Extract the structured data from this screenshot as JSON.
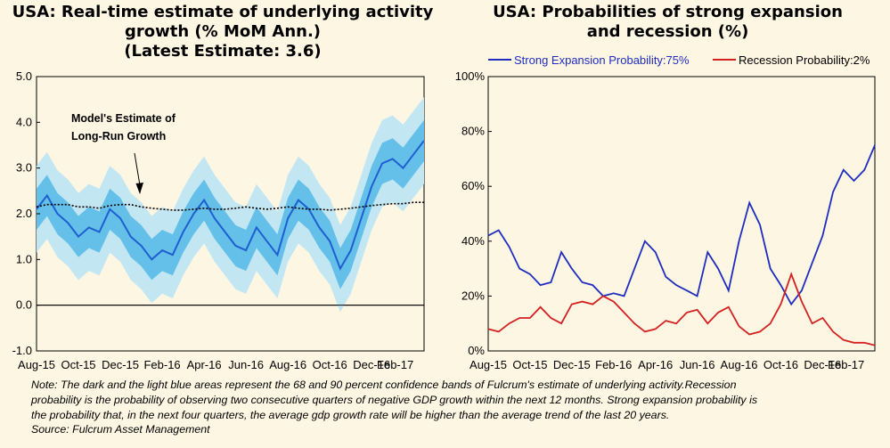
{
  "left_title_lines": [
    "USA: Real-time estimate of underlying activity",
    "growth (% MoM Ann.)",
    "(Latest Estimate: 3.6)"
  ],
  "right_title_lines": [
    "USA: Probabilities of strong expansion",
    "and recession (%)"
  ],
  "note_lines": [
    "Note: The dark and the light blue areas represent the 68 and 90 percent confidence bands of Fulcrum's estimate of underlying activity.Recession",
    "probability is the probability of observing two consecutive quarters of negative GDP growth within the next 12 months. Strong expansion probability is",
    "the probability that, in the next four quarters, the average gdp growth rate will be higher than the average trend of the last 20 years."
  ],
  "source": "Source: Fulcrum Asset Management",
  "colors": {
    "background": "#fdf6e3",
    "dark_band": "#64c0e8",
    "light_band": "#c3e6f3",
    "estimate_line": "#1d5fd0",
    "expansion": "#1f2dbf",
    "recession": "#d42020",
    "trend": "#000000"
  },
  "chart_data": [
    {
      "type": "line",
      "title": "USA: Real-time estimate of underlying activity growth (% MoM Ann.)",
      "subtitle": "(Latest Estimate: 3.6)",
      "x_tick_labels": [
        "Aug-15",
        "Oct-15",
        "Dec-15",
        "Feb-16",
        "Apr-16",
        "Jun-16",
        "Aug-16",
        "Oct-16",
        "Dec-16",
        "Feb-17"
      ],
      "y_tick_labels": [
        "-1.0",
        "0.0",
        "1.0",
        "2.0",
        "3.0",
        "4.0",
        "5.0"
      ],
      "ylim": [
        -1,
        5
      ],
      "annotation_lines": [
        "Model's Estimate of",
        "Long-Run Growth"
      ],
      "x_months_since_aug15": [
        0,
        0.5,
        1,
        1.5,
        2,
        2.5,
        3,
        3.5,
        4,
        4.5,
        5,
        5.5,
        6,
        6.5,
        7,
        7.5,
        8,
        8.5,
        9,
        9.5,
        10,
        10.5,
        11,
        11.5,
        12,
        12.5,
        13,
        13.5,
        14,
        14.5,
        15,
        15.5,
        16,
        16.5,
        17,
        17.5,
        18,
        18.5
      ],
      "series": [
        {
          "name": "Underlying activity growth estimate",
          "values": [
            2.1,
            2.4,
            2.0,
            1.8,
            1.5,
            1.7,
            1.6,
            2.1,
            1.9,
            1.5,
            1.3,
            1.0,
            1.2,
            1.1,
            1.6,
            2.0,
            2.3,
            1.9,
            1.6,
            1.3,
            1.2,
            1.7,
            1.4,
            1.1,
            1.9,
            2.3,
            2.1,
            1.7,
            1.4,
            0.8,
            1.2,
            1.9,
            2.6,
            3.1,
            3.2,
            3.0,
            3.3,
            3.6
          ]
        },
        {
          "name": "Model's estimate of long-run growth",
          "values": [
            2.15,
            2.2,
            2.2,
            2.2,
            2.15,
            2.15,
            2.12,
            2.18,
            2.2,
            2.2,
            2.15,
            2.12,
            2.1,
            2.08,
            2.08,
            2.1,
            2.12,
            2.1,
            2.1,
            2.12,
            2.15,
            2.12,
            2.1,
            2.12,
            2.15,
            2.12,
            2.1,
            2.1,
            2.08,
            2.1,
            2.12,
            2.15,
            2.18,
            2.2,
            2.22,
            2.22,
            2.25,
            2.25
          ]
        }
      ],
      "band_68_halfwidth": 0.45,
      "band_90_halfwidth": 0.95
    },
    {
      "type": "line",
      "title": "USA: Probabilities of strong expansion and recession (%)",
      "x_tick_labels": [
        "Aug-15",
        "Oct-15",
        "Dec-15",
        "Feb-16",
        "Apr-16",
        "Jun-16",
        "Aug-16",
        "Oct-16",
        "Dec-16",
        "Feb-17"
      ],
      "y_tick_labels": [
        "0%",
        "20%",
        "40%",
        "60%",
        "80%",
        "100%"
      ],
      "ylim": [
        0,
        100
      ],
      "legend": [
        "Strong Expansion Probability:75%",
        "Recession Probability:2%"
      ],
      "x_months_since_aug15": [
        0,
        0.5,
        1,
        1.5,
        2,
        2.5,
        3,
        3.5,
        4,
        4.5,
        5,
        5.5,
        6,
        6.5,
        7,
        7.5,
        8,
        8.5,
        9,
        9.5,
        10,
        10.5,
        11,
        11.5,
        12,
        12.5,
        13,
        13.5,
        14,
        14.5,
        15,
        15.5,
        16,
        16.5,
        17,
        17.5,
        18,
        18.5
      ],
      "series": [
        {
          "name": "Strong Expansion Probability",
          "values": [
            42,
            44,
            38,
            30,
            28,
            24,
            25,
            36,
            30,
            25,
            24,
            20,
            21,
            20,
            30,
            40,
            36,
            27,
            24,
            22,
            20,
            36,
            30,
            22,
            40,
            54,
            46,
            30,
            24,
            17,
            22,
            32,
            42,
            58,
            66,
            62,
            66,
            75
          ]
        },
        {
          "name": "Recession Probability",
          "values": [
            8,
            7,
            10,
            12,
            12,
            16,
            12,
            10,
            17,
            18,
            17,
            20,
            18,
            14,
            10,
            7,
            8,
            11,
            10,
            14,
            15,
            10,
            14,
            16,
            9,
            6,
            7,
            10,
            17,
            28,
            18,
            10,
            12,
            7,
            4,
            3,
            3,
            2
          ]
        }
      ]
    }
  ]
}
